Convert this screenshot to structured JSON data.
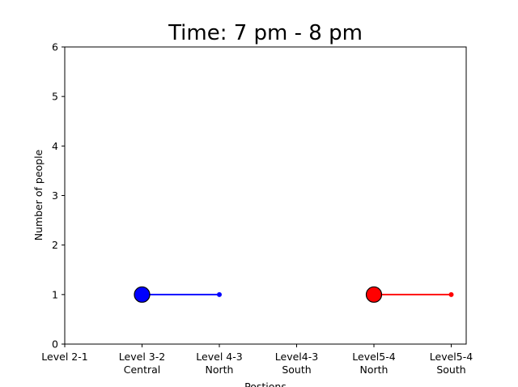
{
  "chart_data": {
    "type": "line",
    "title": "Time: 7 pm - 8 pm",
    "xlabel": "Postions",
    "ylabel": "Number of people",
    "categories": [
      [
        "Level 2-1"
      ],
      [
        "Level 3-2",
        "Central"
      ],
      [
        "Level 4-3",
        "North"
      ],
      [
        "Level4-3",
        "South"
      ],
      [
        "Level5-4",
        "North"
      ],
      [
        "Level5-4",
        "South"
      ]
    ],
    "ylim": [
      0,
      6
    ],
    "yticks": [
      "0",
      "1",
      "2",
      "3",
      "4",
      "5",
      "6"
    ],
    "grid": false,
    "series": [
      {
        "color": "#0000ff",
        "points": [
          {
            "x": 1,
            "y": 1
          },
          {
            "x": 2,
            "y": 1
          }
        ]
      },
      {
        "color": "#ff0000",
        "points": [
          {
            "x": 4,
            "y": 1
          },
          {
            "x": 5,
            "y": 1
          }
        ]
      }
    ]
  }
}
